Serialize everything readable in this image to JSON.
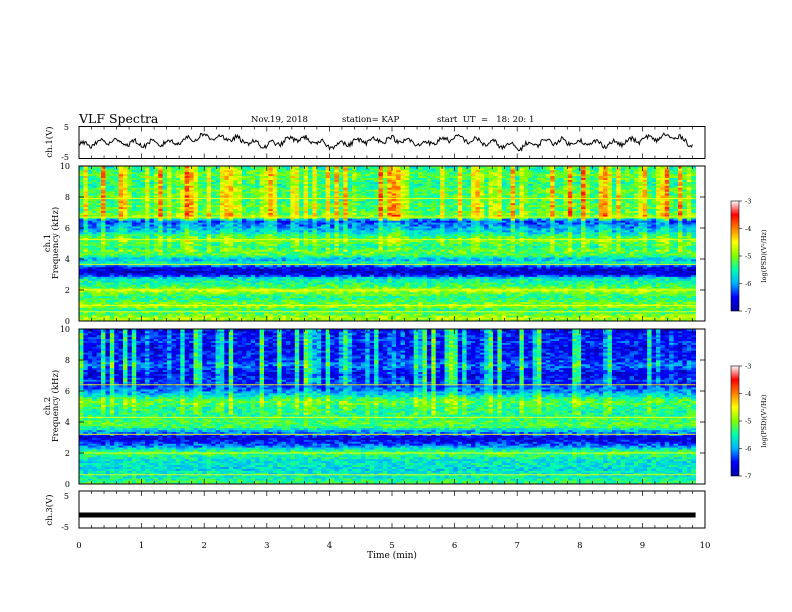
{
  "header": {
    "title": "VLF Spectra",
    "date": "Nov.19, 2018",
    "station": "station= KAP",
    "start": "start  UT  =   18: 20: 1"
  },
  "panels": {
    "ch1v": {
      "ylabel": "ch.1(V)",
      "yticks": [
        "5",
        "-5"
      ]
    },
    "spec1": {
      "ylabel_1": "ch.1",
      "ylabel_2": "Frequency (kHz)"
    },
    "spec2": {
      "ylabel_1": "ch.2",
      "ylabel_2": "Frequency (kHz)"
    },
    "ch3v": {
      "ylabel": "ch.3(V)",
      "yticks": [
        "5",
        "-5"
      ]
    }
  },
  "colorbar": {
    "label": "log(PSD)(V²/Hz)",
    "ticks": [
      "-3",
      "-4",
      "-5",
      "-6",
      "-7"
    ]
  },
  "colors": {
    "colormap": [
      "#0000a0",
      "#0000ff",
      "#00b0ff",
      "#00ffb0",
      "#80ff00",
      "#ffff00",
      "#ff8000",
      "#ff0000",
      "#ffffff"
    ],
    "trace": "#000000"
  },
  "chart_data": [
    {
      "type": "line",
      "name": "ch.1(V)",
      "xlabel": "Time (min)",
      "ylabel": "ch.1(V)",
      "xlim": [
        0,
        10
      ],
      "ylim": [
        -5,
        5
      ],
      "x": [
        0,
        0.5,
        1,
        1.5,
        2,
        2.5,
        3,
        3.5,
        4,
        4.5,
        5,
        5.5,
        6,
        6.5,
        7,
        7.5,
        8,
        8.5,
        9,
        9.5,
        9.8
      ],
      "y": [
        -1,
        0.5,
        -0.5,
        0,
        2,
        1,
        -1,
        1.5,
        -1,
        0.5,
        1,
        -0.5,
        1.5,
        0,
        -1.5,
        0.5,
        0,
        -0.5,
        1,
        2,
        -0.5
      ]
    },
    {
      "type": "heatmap",
      "name": "ch.1",
      "xlabel": "Time (min)",
      "ylabel": "Frequency (kHz)",
      "xlim": [
        0,
        9.85
      ],
      "ylim": [
        0,
        10
      ],
      "zlim": [
        -7,
        -3
      ],
      "zlabel": "log(PSD)(V²/Hz)",
      "freq_profile_khz": [
        0,
        0.25,
        0.5,
        0.75,
        1,
        1.25,
        1.5,
        1.75,
        2,
        2.25,
        2.5,
        2.75,
        3,
        3.25,
        3.5,
        3.75,
        4,
        4.25,
        4.5,
        4.75,
        5,
        5.25,
        5.5,
        5.75,
        6,
        6.25,
        6.5,
        6.75,
        7,
        7.25,
        7.5,
        7.75,
        8,
        8.25,
        8.5,
        8.75,
        9,
        9.25,
        9.5,
        9.75,
        10
      ],
      "log_psd_profile": [
        -5,
        -4.8,
        -5.2,
        -5.4,
        -4.8,
        -5.2,
        -5.4,
        -5.2,
        -4.7,
        -5.3,
        -5.4,
        -5.6,
        -6.6,
        -6.8,
        -6.5,
        -5.4,
        -6,
        -5.2,
        -5.1,
        -5.5,
        -5.3,
        -5.1,
        -5.4,
        -5.8,
        -6,
        -6.2,
        -6.4,
        -5,
        -5.2,
        -5.3,
        -5.2,
        -5.4,
        -5.2,
        -5.3,
        -5.2,
        -5.5,
        -5.4,
        -5.3,
        -5.2,
        -5.4,
        -5.5
      ],
      "strong_lines_khz": [
        0.6,
        1.0,
        2.0,
        3.65,
        5.25,
        6.7,
        7.9
      ]
    },
    {
      "type": "heatmap",
      "name": "ch.2",
      "xlabel": "Time (min)",
      "ylabel": "Frequency (kHz)",
      "xlim": [
        0,
        9.85
      ],
      "ylim": [
        0,
        10
      ],
      "zlim": [
        -7,
        -3
      ],
      "zlabel": "log(PSD)(V²/Hz)",
      "freq_profile_khz": [
        0,
        0.25,
        0.5,
        0.75,
        1,
        1.25,
        1.5,
        1.75,
        2,
        2.25,
        2.5,
        2.75,
        3,
        3.25,
        3.5,
        3.75,
        4,
        4.25,
        4.5,
        4.75,
        5,
        5.25,
        5.5,
        5.75,
        6,
        6.25,
        6.5,
        6.75,
        7,
        7.25,
        7.5,
        7.75,
        8,
        8.25,
        8.5,
        8.75,
        9,
        9.25,
        9.5,
        9.75,
        10
      ],
      "log_psd_profile": [
        -5.2,
        -5.4,
        -5.6,
        -5.6,
        -5.8,
        -5.6,
        -5.7,
        -5.5,
        -5.2,
        -5.6,
        -6.2,
        -6.5,
        -6.7,
        -6.2,
        -5.8,
        -5.2,
        -5.2,
        -5.3,
        -5.4,
        -5.5,
        -5.4,
        -5.2,
        -5.3,
        -5.8,
        -6.1,
        -6.3,
        -6.5,
        -6.4,
        -6.6,
        -6.6,
        -6.3,
        -6.2,
        -6.4,
        -6.5,
        -6.5,
        -6.6,
        -6.5,
        -6.4,
        -6.5,
        -6.5,
        -6.6
      ],
      "strong_lines_khz": [
        0.6,
        2.0,
        3.2,
        4.3,
        6.4
      ]
    },
    {
      "type": "line",
      "name": "ch.3(V)",
      "xlabel": "Time (min)",
      "ylabel": "ch.3(V)",
      "xlim": [
        0,
        10
      ],
      "ylim": [
        -5,
        5
      ],
      "x": [
        0,
        9.85
      ],
      "y": [
        -1.5,
        -1.5
      ]
    }
  ],
  "xaxis": {
    "label": "Time (min)",
    "ticks": [
      "0",
      "1",
      "2",
      "3",
      "4",
      "5",
      "6",
      "7",
      "8",
      "9",
      "10"
    ]
  },
  "freq_ticks": [
    "0",
    "2",
    "4",
    "6",
    "8",
    "10"
  ]
}
